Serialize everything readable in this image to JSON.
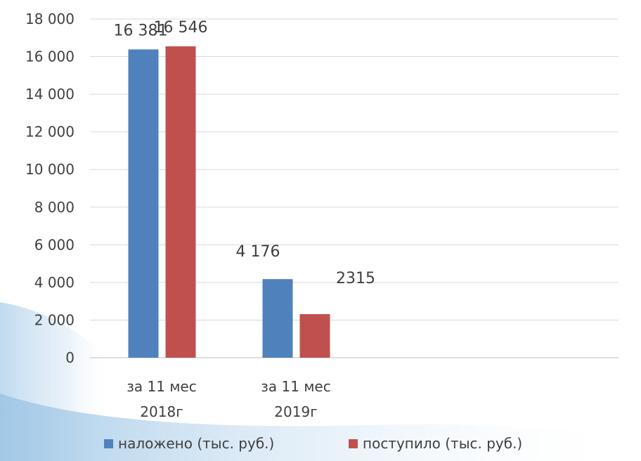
{
  "chart_data": {
    "type": "bar",
    "categories": [
      [
        "за 11 мес",
        "2018г"
      ],
      [
        "за 11 мес",
        "2019г"
      ]
    ],
    "series": [
      {
        "name": "наложено (тыс. руб.)",
        "values": [
          16381,
          4176
        ],
        "data_labels": [
          "16 381",
          "4 176"
        ],
        "color": "#4F81BD"
      },
      {
        "name": "поступило (тыс. руб.)",
        "values": [
          16546,
          2315
        ],
        "data_labels": [
          "16 546",
          "2315"
        ],
        "color": "#C0504D"
      }
    ],
    "y_ticks": [
      0,
      2000,
      4000,
      6000,
      8000,
      10000,
      12000,
      14000,
      16000,
      18000
    ],
    "y_tick_labels": [
      "0",
      "2 000",
      "4 000",
      "6 000",
      "8 000",
      "10 000",
      "12 000",
      "14 000",
      "16 000",
      "18 000"
    ],
    "ylim": [
      0,
      18000
    ],
    "grid": true,
    "legend_position": "bottom",
    "title": "",
    "xlabel": "",
    "ylabel": ""
  },
  "colors": {
    "gridline": "#D9D9D9",
    "text": "#404040",
    "background_accent": "#CFE3F3"
  }
}
